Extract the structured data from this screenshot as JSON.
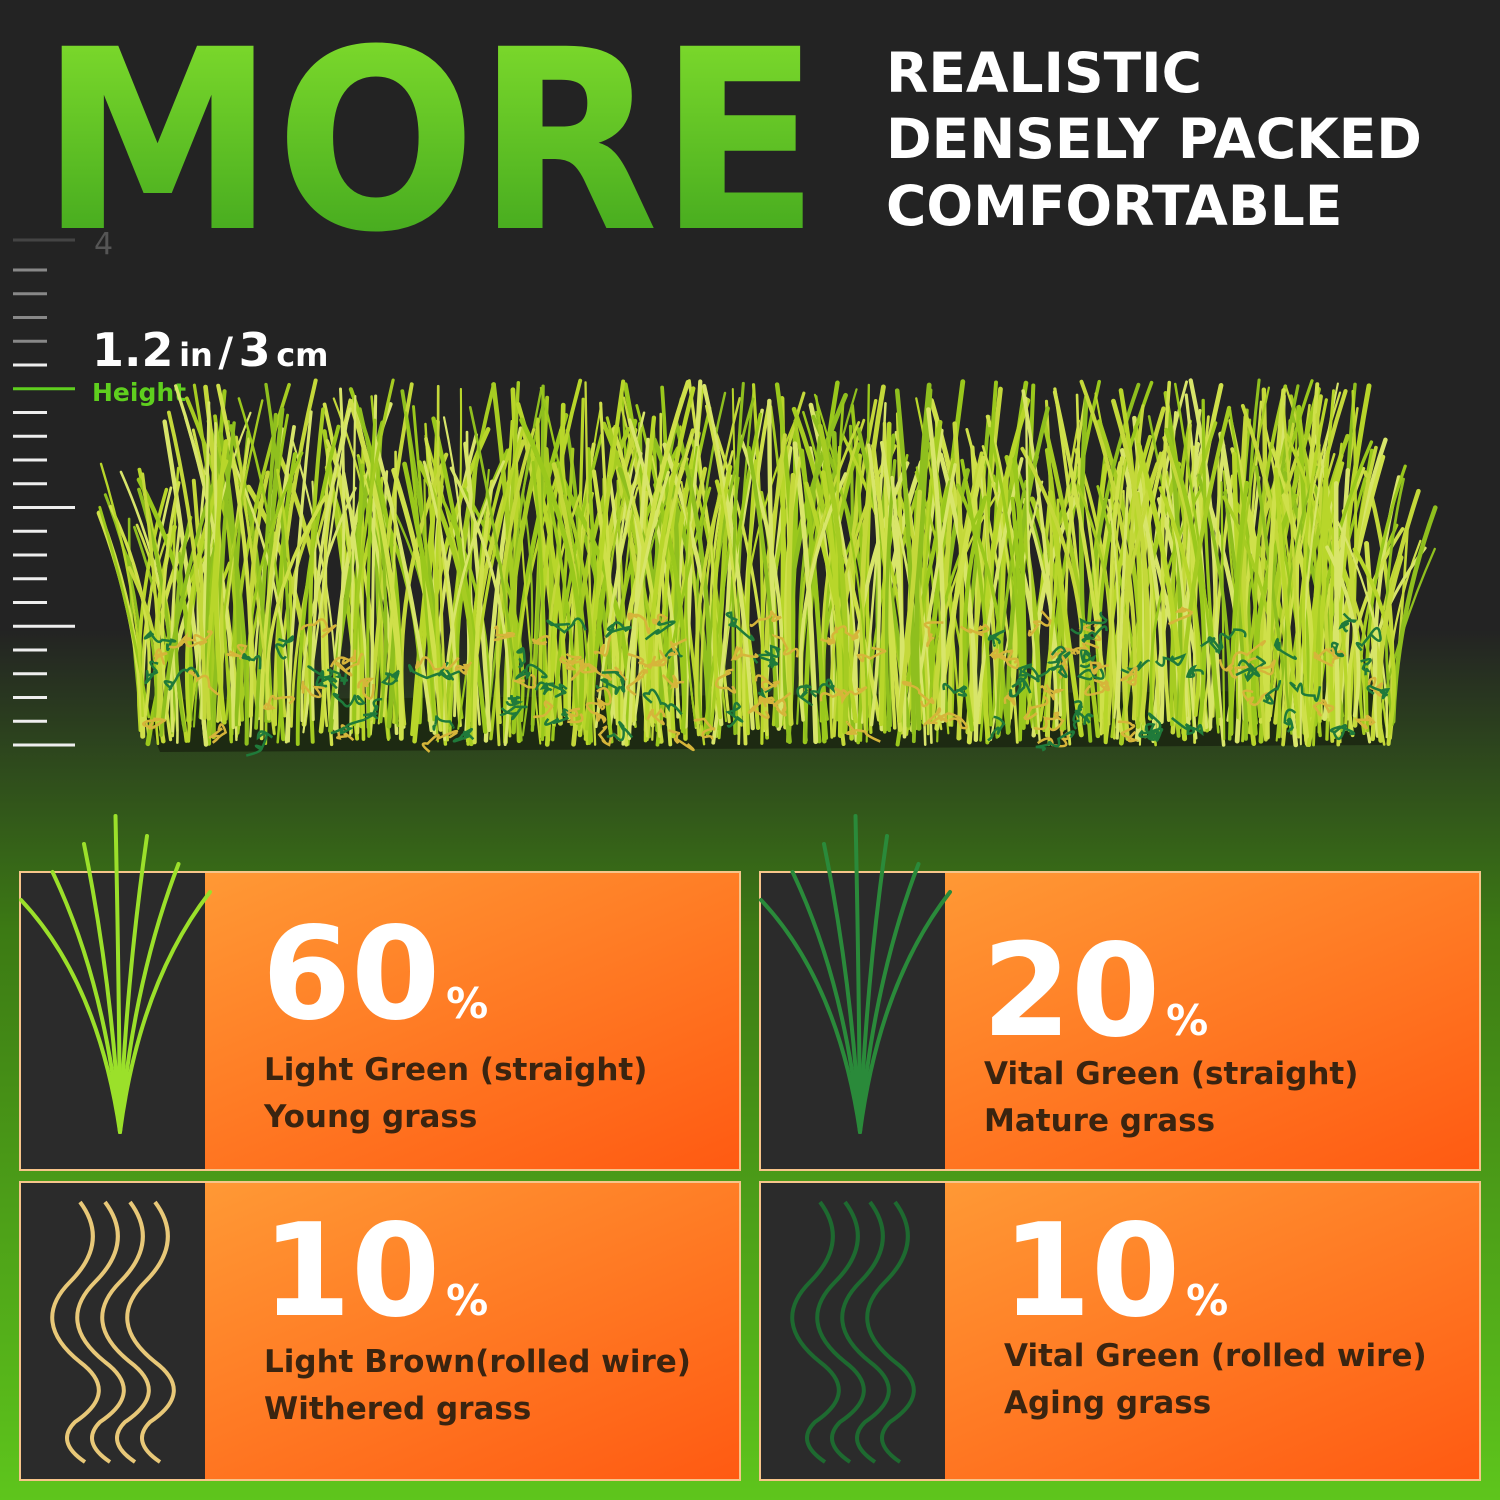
{
  "header": {
    "title": "MORE",
    "features": [
      "REALISTIC",
      "DENSELY PACKED",
      "COMFORTABLE"
    ]
  },
  "ruler": {
    "label": "4"
  },
  "height": {
    "parts": [
      "1.2",
      "in",
      "/",
      "3",
      "cm"
    ],
    "label": "Height"
  },
  "cards": [
    {
      "percent": 60,
      "unit": "%",
      "lines": [
        "Light  Green (straight)",
        "Young grass"
      ]
    },
    {
      "percent": 20,
      "unit": "%",
      "lines": [
        "Vital Green (straight)",
        "Mature grass"
      ]
    },
    {
      "percent": 10,
      "unit": "%",
      "lines": [
        "Light Brown(rolled wire)",
        "Withered grass"
      ]
    },
    {
      "percent": 10,
      "unit": "%",
      "lines": [
        "Vital Green (rolled wire)",
        "Aging grass"
      ]
    }
  ]
}
